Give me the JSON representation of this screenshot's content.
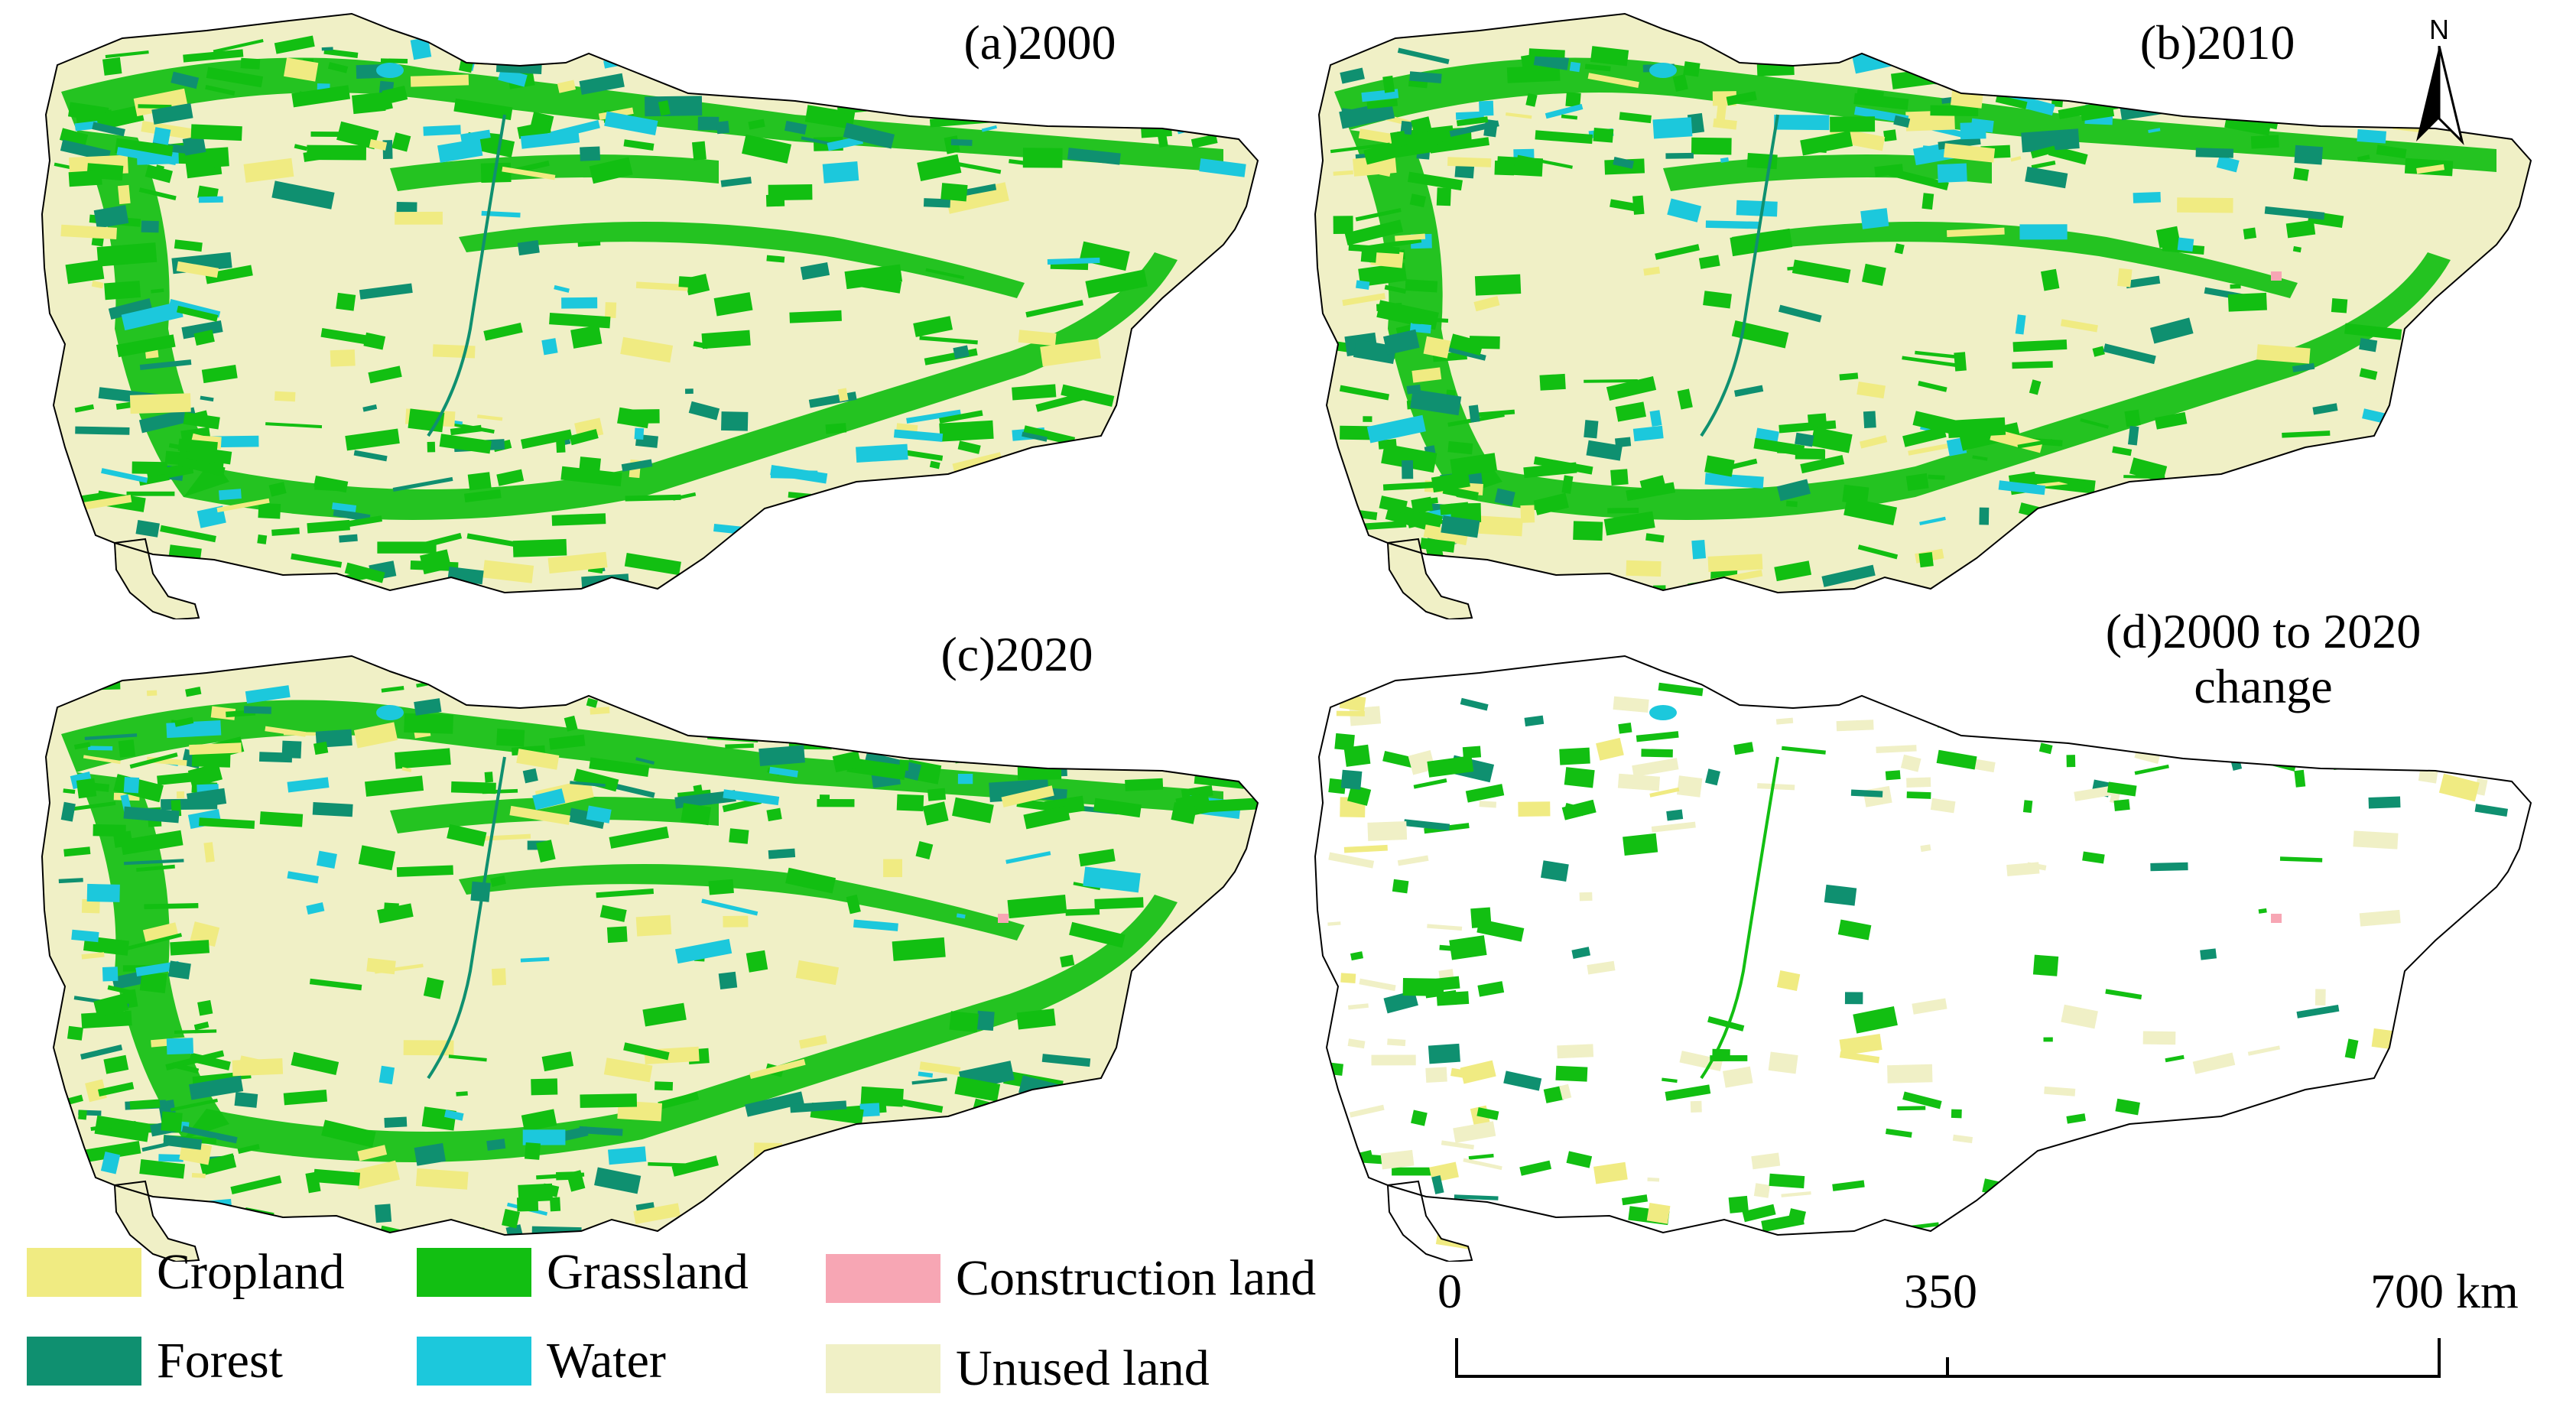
{
  "figure": {
    "panels": [
      {
        "id": "a",
        "title": "(a)2000",
        "variant": "full",
        "construction": false
      },
      {
        "id": "b",
        "title": "(b)2010",
        "variant": "full",
        "construction": true
      },
      {
        "id": "c",
        "title": "(c)2020",
        "variant": "full",
        "construction": true
      },
      {
        "id": "d",
        "title": "(d)2000 to 2020\nchange",
        "variant": "change",
        "construction": true
      }
    ],
    "legend": [
      {
        "label": "Cropland",
        "color": "#f0eb82",
        "key": "cropland"
      },
      {
        "label": "Forest",
        "color": "#0f9070",
        "key": "forest"
      },
      {
        "label": "Grassland",
        "color": "#12bf12",
        "key": "grassland"
      },
      {
        "label": "Water",
        "color": "#1cc8dc",
        "key": "water"
      },
      {
        "label": "Construction land",
        "color": "#f7a6b4",
        "key": "construction"
      },
      {
        "label": "Unused land",
        "color": "#f0f0c6",
        "key": "unused"
      }
    ],
    "scale_bar": {
      "labels": [
        "0",
        "350",
        "700 km"
      ],
      "values": [
        0,
        350,
        700
      ],
      "unit": "km"
    },
    "north_arrow": {
      "label": "N"
    },
    "colors": {
      "cropland": "#f0eb82",
      "forest": "#0f9070",
      "grassland": "#12bf12",
      "water": "#1cc8dc",
      "construction": "#f7a6b4",
      "unused": "#f0f0c6",
      "boundary": "#000000"
    }
  }
}
